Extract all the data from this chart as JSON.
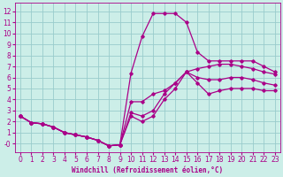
{
  "xlabel": "Windchill (Refroidissement éolien,°C)",
  "xlim": [
    -0.5,
    23.5
  ],
  "ylim": [
    -0.8,
    12.8
  ],
  "xticks": [
    0,
    1,
    2,
    3,
    4,
    5,
    6,
    7,
    8,
    9,
    10,
    11,
    12,
    13,
    14,
    15,
    16,
    17,
    18,
    19,
    20,
    21,
    22,
    23
  ],
  "yticks": [
    0,
    1,
    2,
    3,
    4,
    5,
    6,
    7,
    8,
    9,
    10,
    11,
    12
  ],
  "ytick_labels": [
    "-0",
    "1",
    "2",
    "3",
    "4",
    "5",
    "6",
    "7",
    "8",
    "9",
    "10",
    "11",
    "12"
  ],
  "bg_color": "#cceee8",
  "line_color": "#aa0088",
  "grid_color": "#99cccc",
  "series": [
    {
      "x": [
        0,
        1,
        2,
        3,
        4,
        5,
        6,
        7,
        8,
        9,
        10,
        11,
        12,
        13,
        14,
        15,
        16,
        17,
        18,
        19,
        20,
        21,
        22,
        23
      ],
      "y": [
        2.5,
        1.9,
        1.8,
        1.5,
        1.0,
        0.8,
        0.6,
        0.3,
        -0.2,
        -0.1,
        6.4,
        9.7,
        11.8,
        11.8,
        11.8,
        11.0,
        8.3,
        7.5,
        7.5,
        7.5,
        7.5,
        7.5,
        7.0,
        6.5
      ]
    },
    {
      "x": [
        0,
        1,
        2,
        3,
        4,
        5,
        6,
        7,
        8,
        9,
        10,
        11,
        12,
        13,
        14,
        15,
        16,
        17,
        18,
        19,
        20,
        21,
        22,
        23
      ],
      "y": [
        2.5,
        1.9,
        1.8,
        1.5,
        1.0,
        0.8,
        0.6,
        0.3,
        -0.2,
        -0.1,
        3.8,
        3.8,
        4.5,
        4.8,
        5.5,
        6.5,
        6.8,
        7.0,
        7.2,
        7.2,
        7.0,
        6.8,
        6.5,
        6.3
      ]
    },
    {
      "x": [
        0,
        1,
        2,
        3,
        4,
        5,
        6,
        7,
        8,
        9,
        10,
        11,
        12,
        13,
        14,
        15,
        16,
        17,
        18,
        19,
        20,
        21,
        22,
        23
      ],
      "y": [
        2.5,
        1.9,
        1.8,
        1.5,
        1.0,
        0.8,
        0.6,
        0.3,
        -0.2,
        -0.1,
        2.8,
        2.5,
        3.0,
        4.5,
        5.5,
        6.5,
        6.0,
        5.8,
        5.8,
        6.0,
        6.0,
        5.8,
        5.5,
        5.3
      ]
    },
    {
      "x": [
        0,
        1,
        2,
        3,
        4,
        5,
        6,
        7,
        8,
        9,
        10,
        11,
        12,
        13,
        14,
        15,
        16,
        17,
        18,
        19,
        20,
        21,
        22,
        23
      ],
      "y": [
        2.5,
        1.9,
        1.8,
        1.5,
        1.0,
        0.8,
        0.6,
        0.3,
        -0.2,
        -0.1,
        2.5,
        2.0,
        2.5,
        4.0,
        5.0,
        6.5,
        5.5,
        4.5,
        4.8,
        5.0,
        5.0,
        5.0,
        4.8,
        4.8
      ]
    }
  ]
}
